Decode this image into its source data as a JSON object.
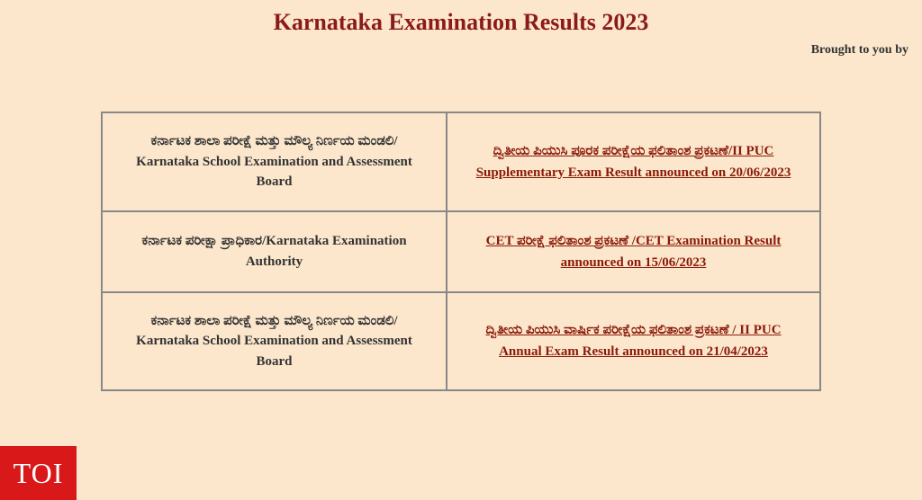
{
  "header": {
    "title": "Karnataka Examination Results 2023",
    "subtitle": "Brought to you by"
  },
  "table": {
    "rows": [
      {
        "board": "ಕರ್ನಾಟಕ ಶಾಲಾ ಪರೀಕ್ಷೆ ಮತ್ತು ಮೌಲ್ಯ ನಿರ್ಣಯ ಮಂಡಲಿ/ Karnataka School Examination and Assessment Board",
        "result": "ದ್ವಿತೀಯ ಪಿಯುಸಿ ಪೂರಕ ಪರೀಕ್ಷೆಯ ಫಲಿತಾಂಶ ಪ್ರಕಟಣೆ/II PUC Supplementary Exam Result announced on 20/06/2023"
      },
      {
        "board": "ಕರ್ನಾಟಕ ಪರೀಕ್ಷಾ ಪ್ರಾಧಿಕಾರ/Karnataka Examination Authority",
        "result": "CET ಪರೀಕ್ಷೆ ಫಲಿತಾಂಶ ಪ್ರಕಟಣೆ /CET Examination Result announced on 15/06/2023"
      },
      {
        "board": "ಕರ್ನಾಟಕ ಶಾಲಾ ಪರೀಕ್ಷೆ ಮತ್ತು ಮೌಲ್ಯ ನಿರ್ಣಯ ಮಂಡಲಿ/ Karnataka School Examination and Assessment Board",
        "result": "ದ್ವಿತೀಯ ಪಿಯುಸಿ ವಾರ್ಷಿಕ ಪರೀಕ್ಷೆಯ ಫಲಿತಾಂಶ ಪ್ರಕಟಣೆ / II PUC Annual Exam Result announced on 21/04/2023"
      }
    ]
  },
  "badge": {
    "text": "TOI"
  },
  "colors": {
    "page_bg": "#fce7cc",
    "title_color": "#8b1a1a",
    "link_color": "#8b1a0a",
    "border_color": "#888",
    "badge_bg": "#d91919",
    "badge_text": "#ffffff"
  }
}
